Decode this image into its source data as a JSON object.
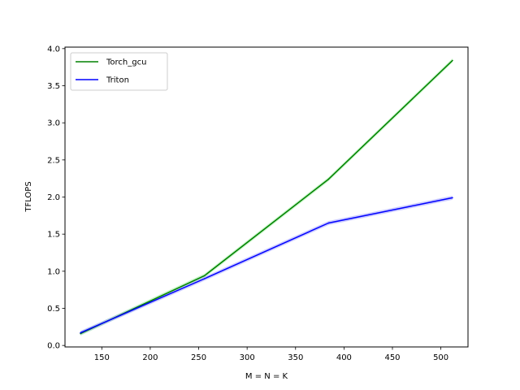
{
  "chart_data": {
    "type": "line",
    "xlabel": "M = N = K",
    "ylabel": "TFLOPS",
    "xlim": [
      112,
      528
    ],
    "ylim": [
      -0.02,
      4.02
    ],
    "xticks": [
      150,
      200,
      250,
      300,
      350,
      400,
      450,
      500
    ],
    "yticks": [
      0.0,
      0.5,
      1.0,
      1.5,
      2.0,
      2.5,
      3.0,
      3.5,
      4.0
    ],
    "grid": false,
    "legend_position": "top-left",
    "x": [
      128,
      256,
      384,
      512
    ],
    "series": [
      {
        "name": "Torch_gcu",
        "color": "#008000",
        "band_color": "#90ee90",
        "values": [
          0.16,
          0.94,
          2.24,
          3.84
        ]
      },
      {
        "name": "Triton",
        "color": "#0000ff",
        "band_color": "#9999ff",
        "values": [
          0.17,
          0.9,
          1.65,
          1.99
        ]
      }
    ]
  }
}
